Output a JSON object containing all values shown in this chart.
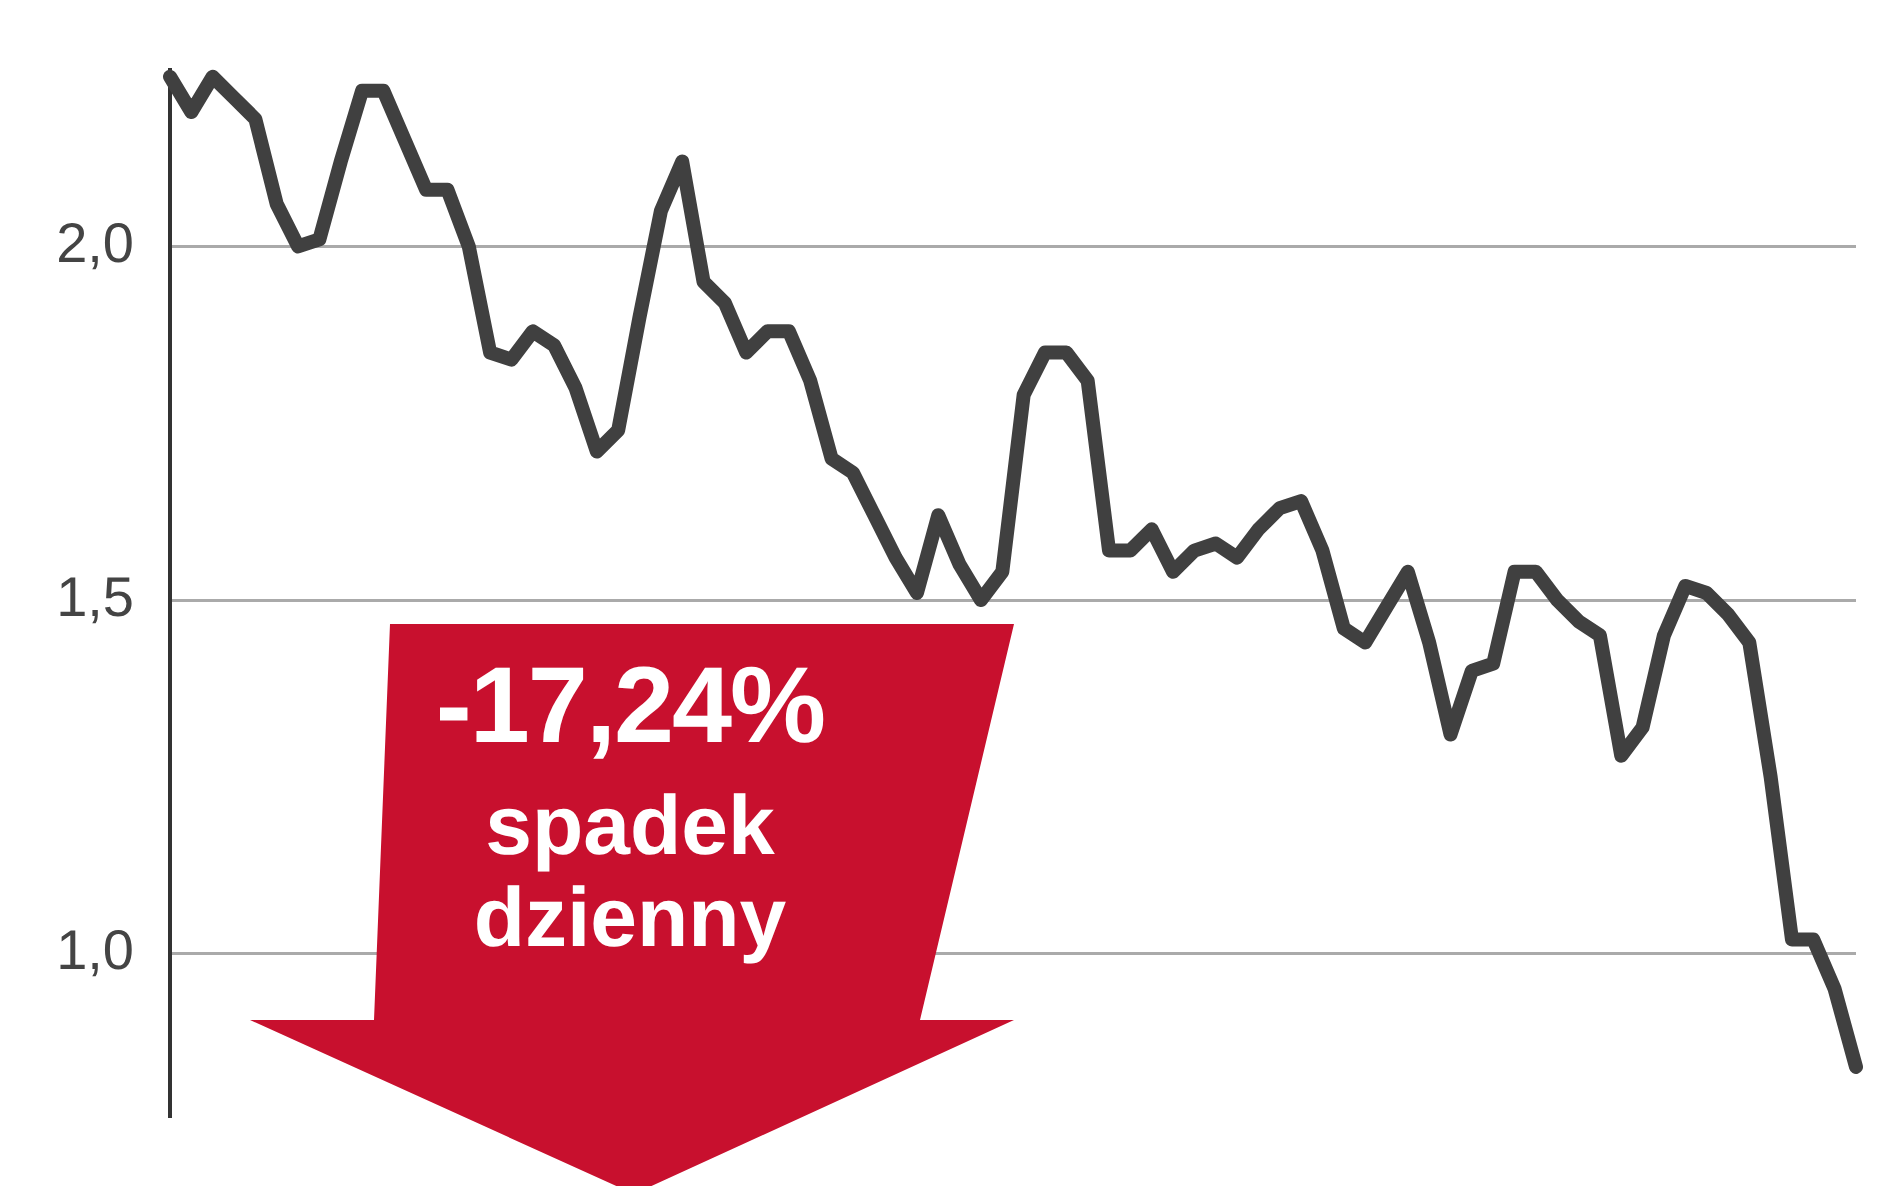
{
  "chart_data": {
    "type": "line",
    "categories": [
      null,
      null,
      null,
      null,
      null,
      null,
      null,
      null,
      null,
      null,
      null,
      null,
      null,
      null,
      null,
      null,
      null,
      null,
      null,
      null,
      null,
      null,
      null,
      null,
      null,
      null,
      null,
      null,
      null,
      null,
      null,
      null,
      null,
      null,
      null,
      null,
      null,
      null,
      null,
      null,
      null,
      null,
      null,
      null,
      null,
      null,
      null,
      null,
      null,
      null,
      null,
      null,
      null,
      null,
      null,
      null,
      null,
      null,
      null,
      null,
      null,
      null,
      null,
      null,
      null,
      null,
      null,
      null,
      null,
      null,
      null,
      null,
      null,
      null,
      null,
      null,
      null,
      null,
      null,
      null
    ],
    "series": [
      {
        "color": "#404040",
        "values": [
          2.24,
          2.19,
          2.24,
          2.21,
          2.18,
          2.06,
          2.0,
          2.01,
          2.12,
          2.22,
          2.22,
          2.15,
          2.08,
          2.08,
          2.0,
          1.85,
          1.84,
          1.88,
          1.86,
          1.8,
          1.71,
          1.74,
          1.9,
          2.05,
          2.12,
          1.95,
          1.92,
          1.85,
          1.88,
          1.88,
          1.81,
          1.7,
          1.68,
          1.62,
          1.56,
          1.51,
          1.62,
          1.55,
          1.5,
          1.54,
          1.79,
          1.85,
          1.85,
          1.81,
          1.57,
          1.57,
          1.6,
          1.54,
          1.57,
          1.58,
          1.56,
          1.6,
          1.63,
          1.64,
          1.57,
          1.46,
          1.44,
          1.49,
          1.54,
          1.44,
          1.31,
          1.4,
          1.41,
          1.54,
          1.54,
          1.5,
          1.47,
          1.45,
          1.28,
          1.32,
          1.45,
          1.52,
          1.51,
          1.48,
          1.44,
          1.25,
          1.02,
          1.02,
          0.95,
          0.84
        ]
      }
    ],
    "ylim": [
      0.77,
      2.25
    ],
    "yticks": [
      {
        "value": 1,
        "label": "1,0"
      },
      {
        "value": 1.5,
        "label": "1,5"
      },
      {
        "value": 2,
        "label": "2,0"
      }
    ],
    "grid": "y",
    "legend": false,
    "marker": "none",
    "line_style": "solid",
    "tick_labels": "y",
    "annotations": [
      "-17,24%",
      "spadek dzienny"
    ]
  }
}
